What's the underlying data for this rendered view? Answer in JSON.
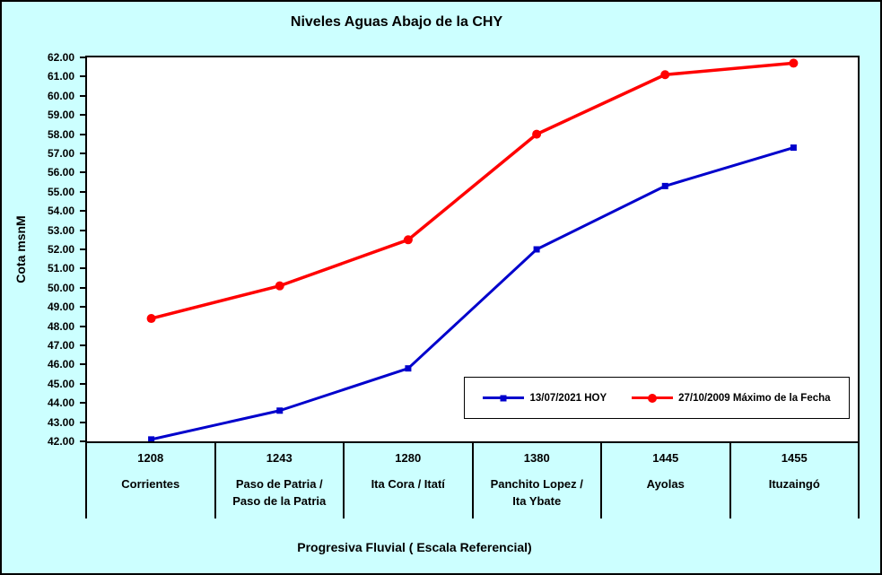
{
  "chart_data": {
    "type": "line",
    "title": "Niveles Aguas Abajo de la CHY",
    "xlabel": "Progresiva Fluvial ( Escala Referencial)",
    "ylabel": "Cota msnM",
    "ylim": [
      42,
      62
    ],
    "ytick_step": 1,
    "ytick_format_decimals": 2,
    "grid": false,
    "legend_position": "inside-bottom-right",
    "categories": [
      {
        "km": "1208",
        "name": "Corrientes"
      },
      {
        "km": "1243",
        "name": "Paso de Patria /\nPaso de la Patria"
      },
      {
        "km": "1280",
        "name": "Ita Cora / Itatí"
      },
      {
        "km": "1380",
        "name": "Panchito Lopez /\nIta Ybate"
      },
      {
        "km": "1445",
        "name": "Ayolas"
      },
      {
        "km": "1455",
        "name": "Ituzaingó"
      }
    ],
    "series": [
      {
        "name": "13/07/2021 HOY",
        "color": "#0000CC",
        "marker": "square",
        "values": [
          42.1,
          43.6,
          45.8,
          52.0,
          55.3,
          57.3
        ]
      },
      {
        "name": "27/10/2009 Máximo de la Fecha",
        "color": "#FF0000",
        "marker": "circle",
        "values": [
          48.4,
          50.1,
          52.5,
          58.0,
          61.1,
          61.7
        ]
      }
    ],
    "colors": {
      "background": "#CCFFFF",
      "plot_background": "#FFFFFF",
      "axis": "#000000"
    }
  }
}
